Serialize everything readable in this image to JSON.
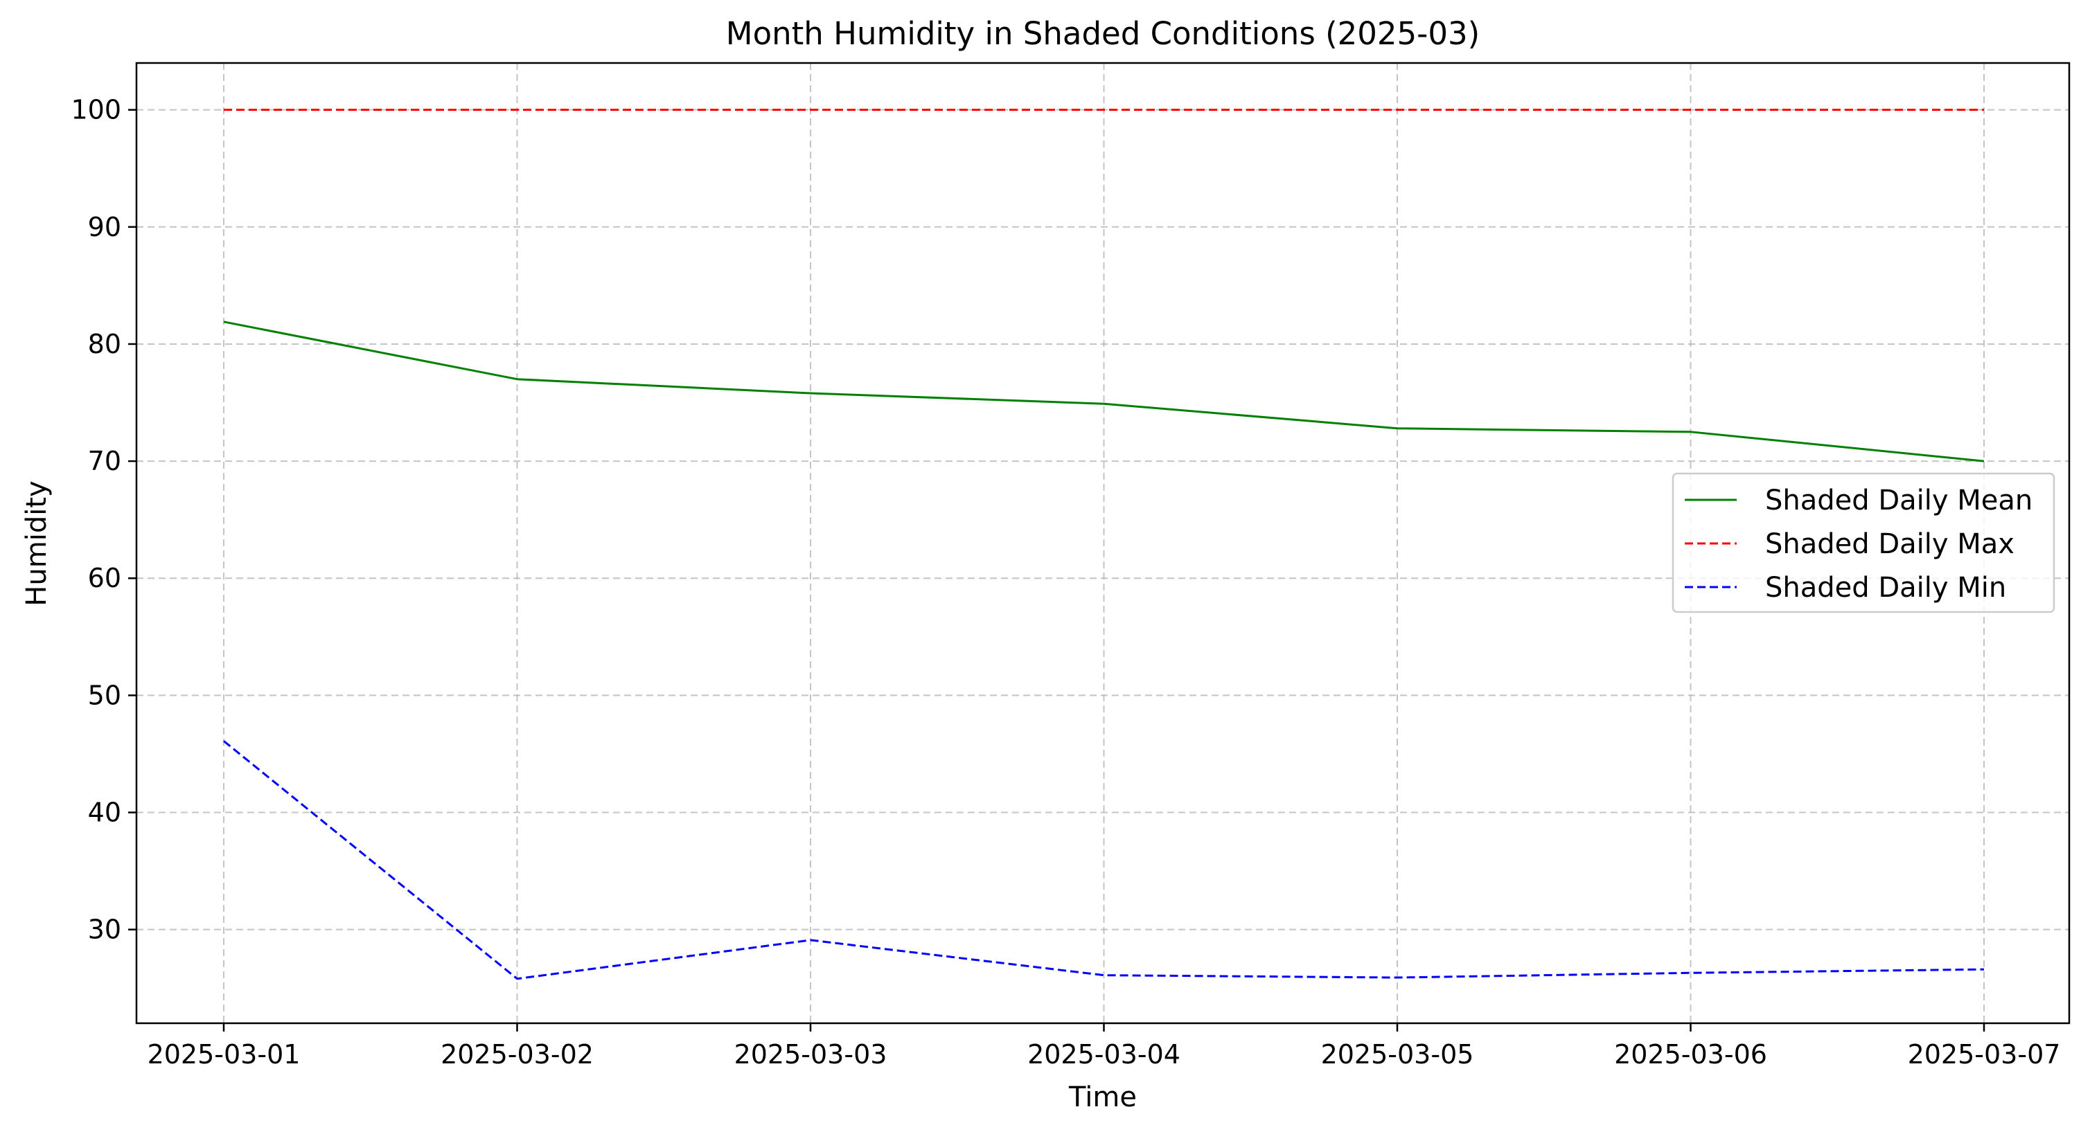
{
  "chart_data": {
    "type": "line",
    "title": "Month Humidity in Shaded Conditions (2025-03)",
    "xlabel": "Time",
    "ylabel": "Humidity",
    "x": [
      "2025-03-01",
      "2025-03-02",
      "2025-03-03",
      "2025-03-04",
      "2025-03-05",
      "2025-03-06",
      "2025-03-07"
    ],
    "xlim": [
      "2025-02-28 (approx. 0.3 day before 2025-03-01)",
      "2025-03-07 (approx. 0.3 day after)"
    ],
    "ylim": [
      22,
      104
    ],
    "yticks": [
      30,
      40,
      50,
      60,
      70,
      80,
      90,
      100
    ],
    "grid": true,
    "legend_position": "center-right",
    "series": [
      {
        "name": "Shaded Daily Mean",
        "color": "#008000",
        "style": "solid",
        "values": [
          81.9,
          77.0,
          75.8,
          74.9,
          72.8,
          72.5,
          70.0
        ]
      },
      {
        "name": "Shaded Daily Max",
        "color": "#ff0000",
        "style": "dashed",
        "values": [
          100,
          100,
          100,
          100,
          100,
          100,
          100
        ]
      },
      {
        "name": "Shaded Daily Min",
        "color": "#0000ff",
        "style": "dashed",
        "values": [
          46.1,
          25.8,
          29.1,
          26.1,
          25.9,
          26.3,
          26.6
        ]
      }
    ]
  }
}
